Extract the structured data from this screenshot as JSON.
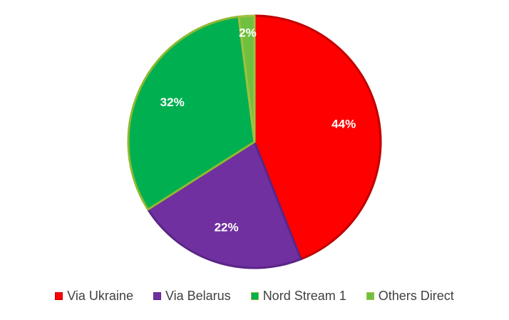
{
  "chart_data": {
    "type": "pie",
    "title": "",
    "slices": [
      {
        "label": "Via Ukraine",
        "value": 44,
        "data_label": "44%",
        "color": "#ff0000",
        "edge": "#c00000"
      },
      {
        "label": "Via Belarus",
        "value": 22,
        "data_label": "22%",
        "color": "#7030a0",
        "edge": "#5b2586"
      },
      {
        "label": "Nord Stream 1",
        "value": 32,
        "data_label": "32%",
        "color": "#00b050",
        "edge": "#8fb830"
      },
      {
        "label": "Others Direct",
        "value": 2,
        "data_label": "2%",
        "color": "#70c040",
        "edge": "#a0c040"
      }
    ],
    "legend_position": "bottom"
  }
}
